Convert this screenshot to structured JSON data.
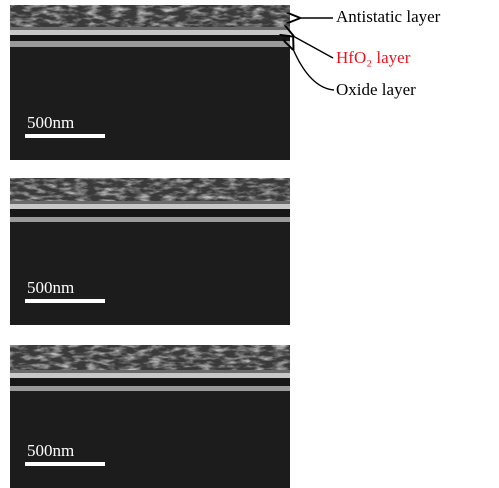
{
  "panels": [
    {
      "scale_label": "500nm"
    },
    {
      "scale_label": "500nm"
    },
    {
      "scale_label": "500nm"
    }
  ],
  "annotations": {
    "antistatic": "Antistatic layer",
    "hfo2": "HfO₂ layer",
    "oxide": "Oxide layer"
  }
}
